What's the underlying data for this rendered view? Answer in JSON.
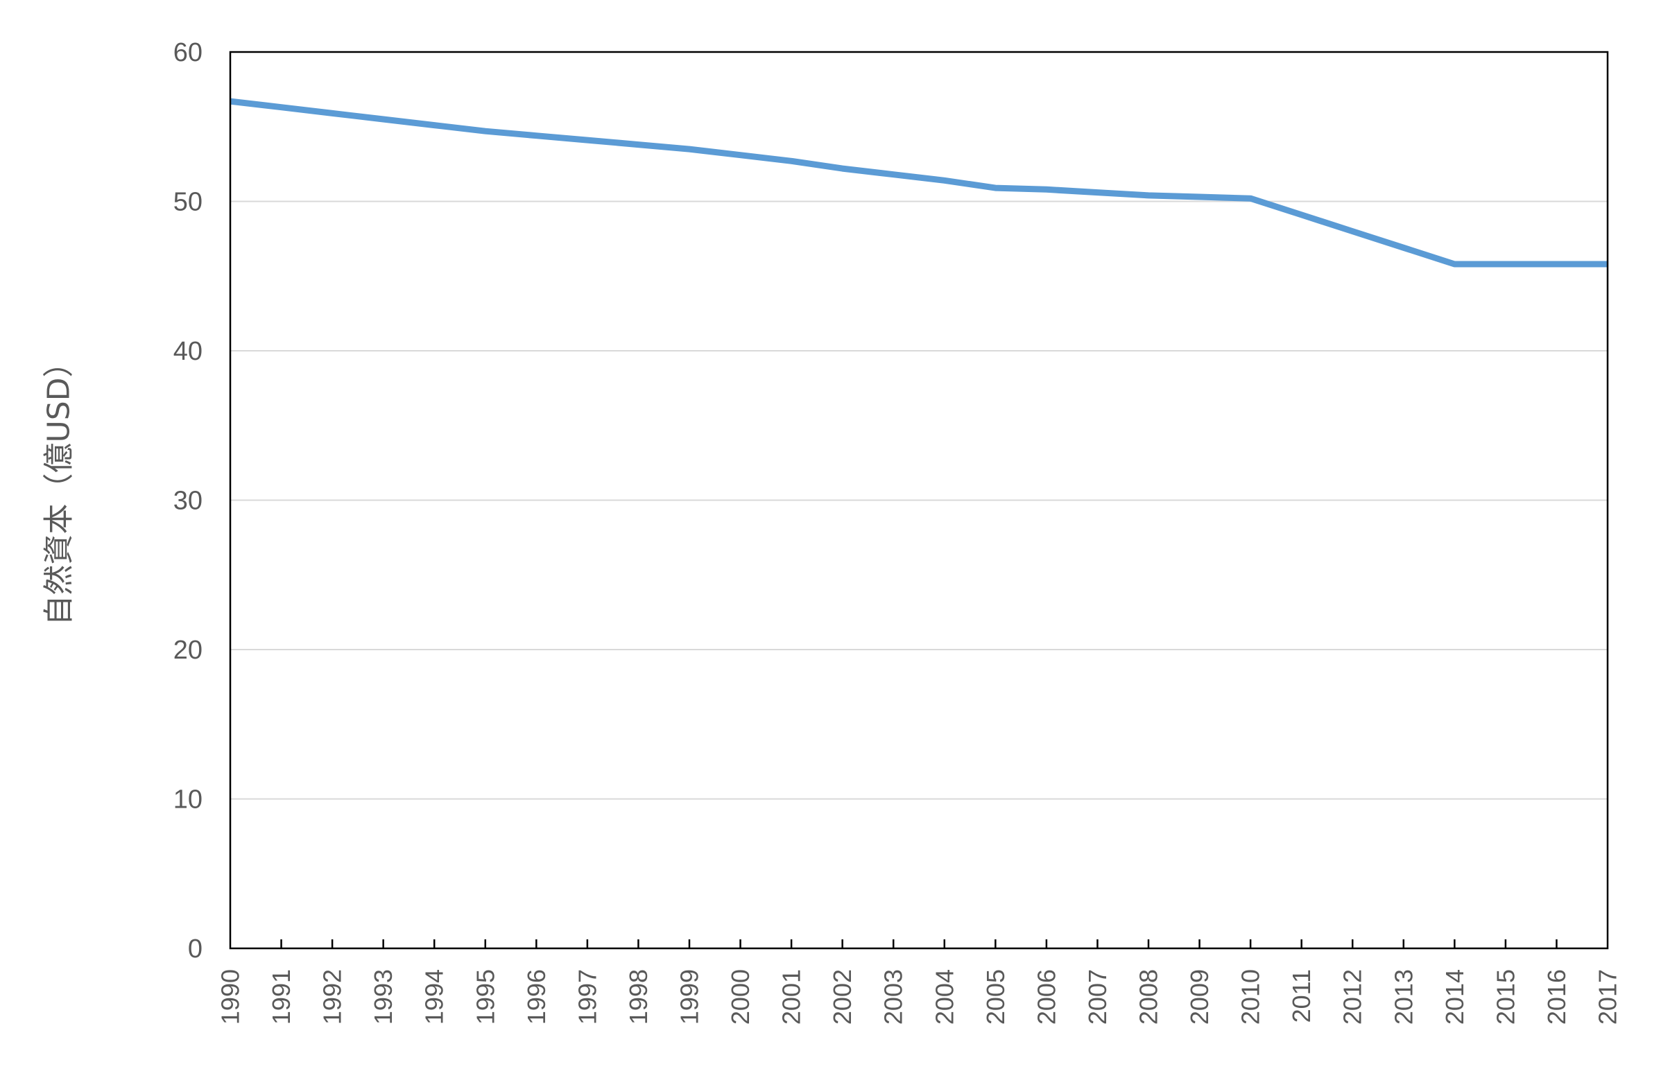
{
  "chart_data": {
    "type": "line",
    "title": "",
    "xlabel": "",
    "ylabel": "自然資本（億USD）",
    "ylim": [
      0,
      60
    ],
    "yticks": [
      0,
      10,
      20,
      30,
      40,
      50,
      60
    ],
    "grid": true,
    "legend": "none",
    "x": [
      "1990",
      "1991",
      "1992",
      "1993",
      "1994",
      "1995",
      "1996",
      "1997",
      "1998",
      "1999",
      "2000",
      "2001",
      "2002",
      "2003",
      "2004",
      "2005",
      "2006",
      "2007",
      "2008",
      "2009",
      "2010",
      "2011",
      "2012",
      "2013",
      "2014",
      "2015",
      "2016",
      "2017"
    ],
    "series": [
      {
        "color": "#5b9bd5",
        "values": [
          56.7,
          56.3,
          55.9,
          55.5,
          55.1,
          54.7,
          54.4,
          54.1,
          53.8,
          53.5,
          53.1,
          52.7,
          52.2,
          51.8,
          51.4,
          50.9,
          50.8,
          50.6,
          50.4,
          50.3,
          50.2,
          49.1,
          48.0,
          46.9,
          45.8,
          45.8,
          45.8,
          45.8
        ]
      }
    ],
    "colors": {
      "line": "#5b9bd5",
      "grid": "#d9d9d9",
      "axis": "#000000",
      "text": "#595959"
    }
  }
}
